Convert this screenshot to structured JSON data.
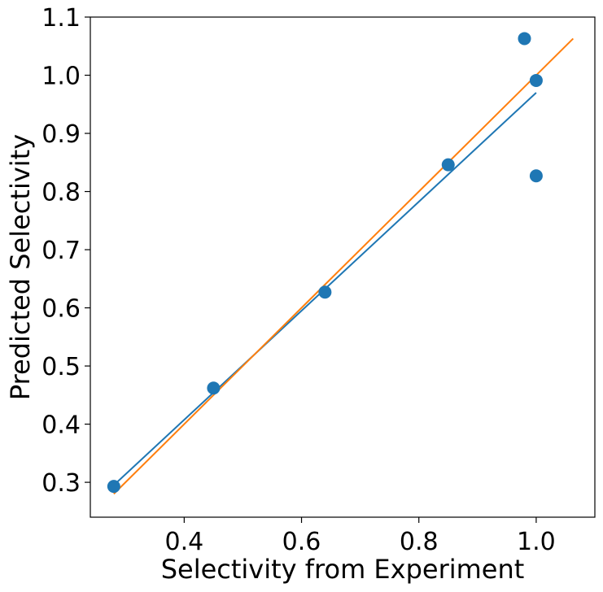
{
  "chart_data": {
    "type": "scatter",
    "title": "",
    "xlabel": "Selectivity from Experiment",
    "ylabel": "Predicted Selectivity",
    "xlim": [
      0.24,
      1.1
    ],
    "ylim": [
      0.24,
      1.1
    ],
    "xticks": [
      0.4,
      0.6,
      0.8,
      1.0
    ],
    "xtick_labels": [
      "0.4",
      "0.6",
      "0.8",
      "1.0"
    ],
    "yticks": [
      0.3,
      0.4,
      0.5,
      0.6,
      0.7,
      0.8,
      0.9,
      1.0,
      1.1
    ],
    "ytick_labels": [
      "0.3",
      "0.4",
      "0.5",
      "0.6",
      "0.7",
      "0.8",
      "0.9",
      "1.0",
      "1.1"
    ],
    "grid": false,
    "legend": "none",
    "series": [
      {
        "name": "data points",
        "kind": "scatter",
        "color": "#1f77b4",
        "x": [
          0.28,
          0.45,
          0.64,
          0.85,
          0.98,
          1.0,
          1.0
        ],
        "y": [
          0.293,
          0.462,
          0.627,
          0.846,
          1.063,
          0.991,
          0.827
        ]
      },
      {
        "name": "fit line",
        "kind": "line",
        "color": "#1f77b4",
        "x": [
          0.28,
          1.0
        ],
        "y": [
          0.295,
          0.97
        ]
      },
      {
        "name": "identity line",
        "kind": "line",
        "color": "#ff7f0e",
        "x": [
          0.28,
          1.063
        ],
        "y": [
          0.28,
          1.063
        ]
      }
    ]
  }
}
